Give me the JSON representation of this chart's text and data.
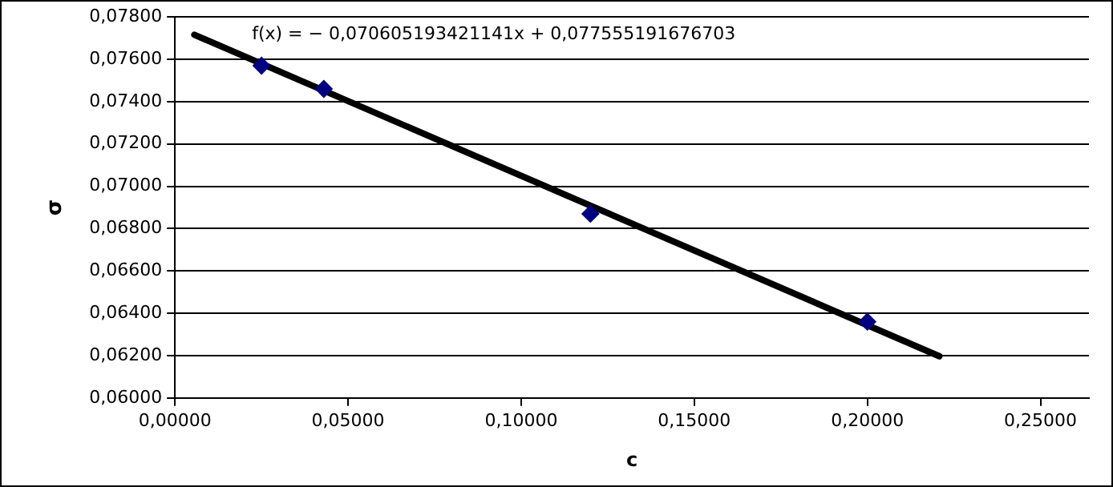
{
  "chart_data": {
    "type": "scatter",
    "xlabel": "c",
    "ylabel": "σ",
    "xlim": [
      0,
      0.264
    ],
    "xticks": [
      {
        "value": 0,
        "label": "0,00000"
      },
      {
        "value": 0.05,
        "label": "0,05000"
      },
      {
        "value": 0.1,
        "label": "0,10000"
      },
      {
        "value": 0.15,
        "label": "0,15000"
      },
      {
        "value": 0.2,
        "label": "0,20000"
      },
      {
        "value": 0.25,
        "label": "0,25000"
      }
    ],
    "ylim": [
      0.06,
      0.078
    ],
    "yticks": [
      {
        "value": 0.06,
        "label": "0,06000"
      },
      {
        "value": 0.062,
        "label": "0,06200"
      },
      {
        "value": 0.064,
        "label": "0,06400"
      },
      {
        "value": 0.066,
        "label": "0,06600"
      },
      {
        "value": 0.068,
        "label": "0,06800"
      },
      {
        "value": 0.07,
        "label": "0,07000"
      },
      {
        "value": 0.072,
        "label": "0,07200"
      },
      {
        "value": 0.074,
        "label": "0,07400"
      },
      {
        "value": 0.076,
        "label": "0,07600"
      },
      {
        "value": 0.078,
        "label": "0,07800"
      }
    ],
    "series": [
      {
        "color": "#000080",
        "x": [
          0.025,
          0.043,
          0.12,
          0.2
        ],
        "values": [
          0.0757,
          0.0746,
          0.0687,
          0.0636
        ],
        "marker": "diamond"
      },
      {
        "type": "line",
        "color": "#000000",
        "x": [
          0.0056,
          0.2208
        ],
        "values": [
          0.07716,
          0.06197
        ],
        "marker": "none"
      }
    ],
    "annotations": [
      "f(x) = − 0,070605193421141x + 0,077555191676703"
    ],
    "grid": "y",
    "legend": false
  }
}
